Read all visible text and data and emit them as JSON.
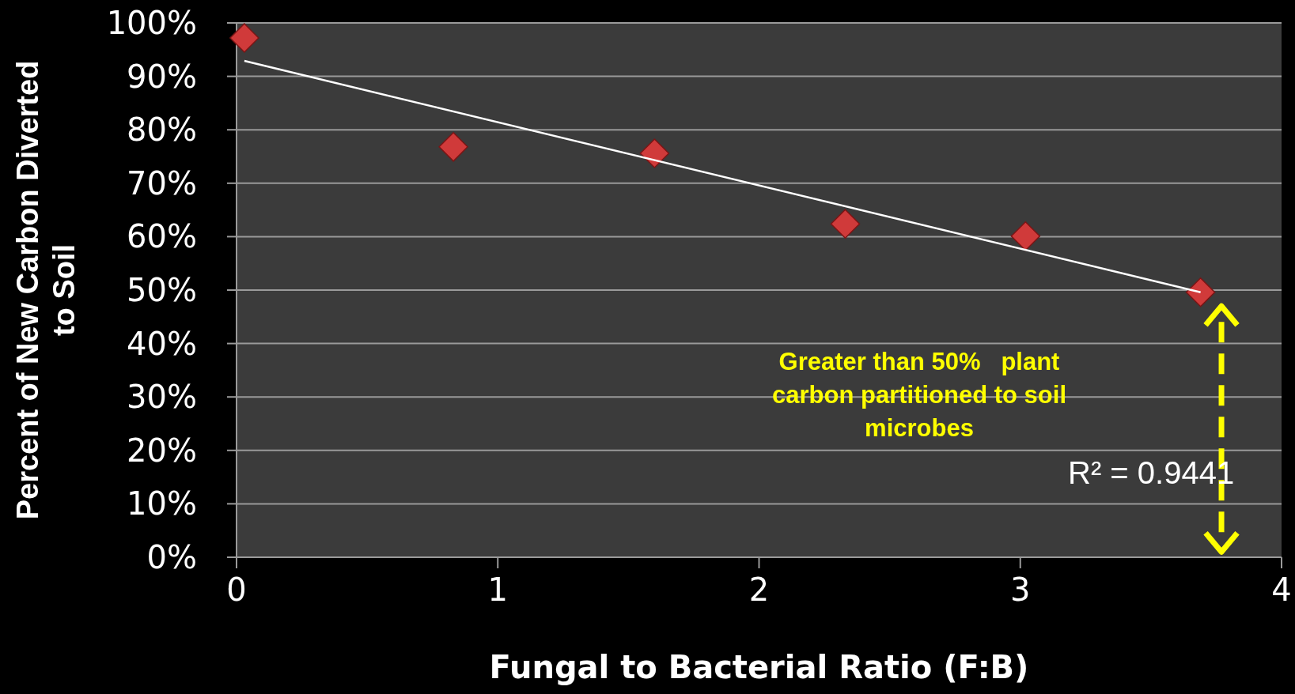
{
  "chart_data": {
    "type": "scatter",
    "xlabel": "Fungal to Bacterial Ratio (F:B)",
    "ylabel": "Percent of New Carbon Diverted to Soil",
    "xlim": [
      0,
      4
    ],
    "xticks": [
      0,
      1,
      2,
      3,
      4
    ],
    "ylim": [
      0,
      100
    ],
    "yticks": [
      {
        "value": 0,
        "label": "0%"
      },
      {
        "value": 10,
        "label": "10%"
      },
      {
        "value": 20,
        "label": "20%"
      },
      {
        "value": 30,
        "label": "30%"
      },
      {
        "value": 40,
        "label": "40%"
      },
      {
        "value": 50,
        "label": "50%"
      },
      {
        "value": 60,
        "label": "60%"
      },
      {
        "value": 70,
        "label": "70%"
      },
      {
        "value": 80,
        "label": "80%"
      },
      {
        "value": 90,
        "label": "90%"
      },
      {
        "value": 100,
        "label": "100%"
      }
    ],
    "grid": "y",
    "marker": "diamond",
    "series": [
      {
        "color": "#d03a3a",
        "x": [
          0.03,
          0.83,
          1.6,
          2.33,
          3.02,
          3.69
        ],
        "values": [
          97.2,
          76.8,
          75.6,
          62.4,
          60.1,
          49.6
        ]
      },
      {
        "type": "line",
        "color": "#ffffff",
        "marker": "none",
        "x": [
          0.03,
          3.69
        ],
        "values": [
          92.9,
          49.6
        ]
      }
    ],
    "annotations": [
      "Greater than 50%   plant carbon partitioned to soil microbes",
      "R² = 0.9441"
    ]
  }
}
